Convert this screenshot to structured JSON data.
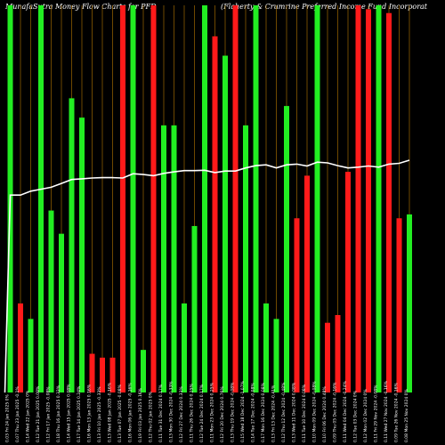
{
  "chart_data": {
    "type": "bar",
    "title_left": "MunafaSutra  Money Flow  Charts for PFD",
    "title_right": "(Flaherty & Crumrine   Preferred Income   Fund Incorporat",
    "ylim": [
      0,
      100
    ],
    "colors": {
      "up": "#22ee22",
      "down": "#ff1a1a",
      "grid": "#8a5a00",
      "line": "#ffffff",
      "background": "#000000"
    },
    "categories": [
      "Fri 24 Jan 2025",
      "Thu 23 Jan 2025",
      "Wed 22 Jan 2025",
      "Tue 21 Jan 2025",
      "Fri 17 Jan 2025",
      "Thu 16 Jan 2025",
      "Wed 15 Jan 2025",
      "Tue 14 Jan 2025",
      "Mon 13 Jan 2025",
      "Fri 10 Jan 2025",
      "Wed 08 Jan 2025",
      "Tue 07 Jan 2025",
      "Mon 06 Jan 2025",
      "Fri 03 Jan 2025",
      "Thu 02 Jan 2025",
      "Tue 31 Dec 2024",
      "Mon 30 Dec 2024",
      "Fri 27 Dec 2024",
      "Thu 26 Dec 2024",
      "Tue 24 Dec 2024",
      "Mon 23 Dec 2024",
      "Fri 20 Dec 2024",
      "Thu 19 Dec 2024",
      "Wed 18 Dec 2024",
      "Tue 17 Dec 2024",
      "Mon 16 Dec 2024",
      "Fri 13 Dec 2024",
      "Thu 12 Dec 2024",
      "Wed 11 Dec 2024",
      "Tue 10 Dec 2024",
      "Mon 09 Dec 2024",
      "Fri 06 Dec 2024",
      "Thu 05 Dec 2024",
      "Wed 04 Dec 2024",
      "Tue 03 Dec 2024",
      "Mon 02 Dec 2024",
      "Fri 29 Nov 2024",
      "Wed 27 Nov 2024",
      "Tue 26 Nov 2024",
      "Mon 25 Nov 2024"
    ],
    "x_tick_labels": [
      "0.03 Fri 24 Jan 2025 0%",
      "0.07 Thu 23 Jan 2025 -0.1%",
      "0.14 Wed 22 Jan 2025 0%",
      "0.12 Tue 21 Jan 2025 0.08%",
      "0.12 Fri 17 Jan 2025 -0.08%",
      "0.18 Thu 16 Jan 2025 0.33%",
      "0.14 Wed 15 Jan 2025 0.08%",
      "0.17 Tue 14 Jan 2025 0.24%",
      "0.16 Mon 13 Jan 2025 0.16%",
      "0.13 Fri 10 Jan 2025 -0.33%",
      "0.13 Wed 08 Jan 2025 -0.16%",
      "0.13 Tue 07 Jan 2025 -0.08%",
      "0.16 Mon 06 Jan 2025 -0.16%",
      "0.19 Fri 03 Jan 2025 0.16%",
      "0.12 Thu 02 Jan 2025 0%",
      "0.11 Tue 31 Dec 2024 0.17%",
      "0.13 Mon 30 Dec 2024 -0.33%",
      "0.12 Fri 27 Dec 2024 0.33%",
      "0.11 Thu 26 Dec 2024 0.25%",
      "0.12 Tue 24 Dec 2024 0.17%",
      "0.11 Mon 23 Dec 2024 0.25%",
      "0.12 Fri 20 Dec 2024 0.76%",
      "0.13 Thu 19 Dec 2024 -0.08%",
      "0.15 Wed 18 Dec 2024 -1.07%",
      "0.14 Tue 17 Dec 2024 -0.08%",
      "0.17 Mon 16 Dec 2024 0.08%",
      "0.13 Fri 13 Dec 2024 -0.41%",
      "0.12 Thu 12 Dec 2024 -0.48%",
      "0.13 Wed 11 Dec 2024 0.08%",
      "0.11 Tue 10 Dec 2024 0.08%",
      "0.10 Mon 09 Dec 2024 -0.08%",
      "0.10 Fri 06 Dec 2024 0.48%",
      "0.09 Thu 05 Dec 2024 -0.16%",
      "0.11 Wed 04 Dec 2024 -0.24%",
      "0.12 Tue 03 Dec 2024 0%",
      "0.12 Mon 02 Dec 2024 0%",
      "0.11 Fri 29 Nov 2024 -0.08%",
      "0.11 Wed 27 Nov 2024 -0.16%",
      "0.09 Tue 26 Nov 2024 -0.16%",
      "0.08 Mon 25 Nov 2024 0%"
    ],
    "series": [
      {
        "values": [
          100,
          23,
          19,
          100,
          47,
          41,
          76,
          71,
          10,
          9,
          9,
          100,
          100,
          11,
          100,
          69,
          69,
          23,
          43,
          100,
          92,
          87,
          100,
          69,
          100,
          23,
          19,
          74,
          45,
          56,
          100,
          18,
          20,
          57,
          100,
          99,
          100,
          98,
          45,
          46
        ],
        "direction": [
          "up",
          "down",
          "up",
          "up",
          "up",
          "up",
          "up",
          "up",
          "down",
          "down",
          "down",
          "down",
          "up",
          "up",
          "down",
          "up",
          "up",
          "up",
          "up",
          "up",
          "down",
          "up",
          "down",
          "up",
          "up",
          "up",
          "up",
          "up",
          "down",
          "down",
          "up",
          "down",
          "down",
          "down",
          "down",
          "down",
          "up",
          "down",
          "down",
          "up"
        ]
      },
      {
        "type": "line",
        "values": [
          51,
          51,
          52,
          52.5,
          53,
          54,
          55,
          55.2,
          55.4,
          55.5,
          55.5,
          55.4,
          56.5,
          56.3,
          56,
          56.6,
          57,
          57.3,
          57.3,
          57.4,
          56.8,
          57.2,
          57.2,
          58,
          58.6,
          58.8,
          58,
          58.8,
          59,
          58.5,
          59.5,
          59.3,
          58.6,
          58,
          58.2,
          58.5,
          58.2,
          59,
          59.2,
          60
        ]
      }
    ]
  }
}
